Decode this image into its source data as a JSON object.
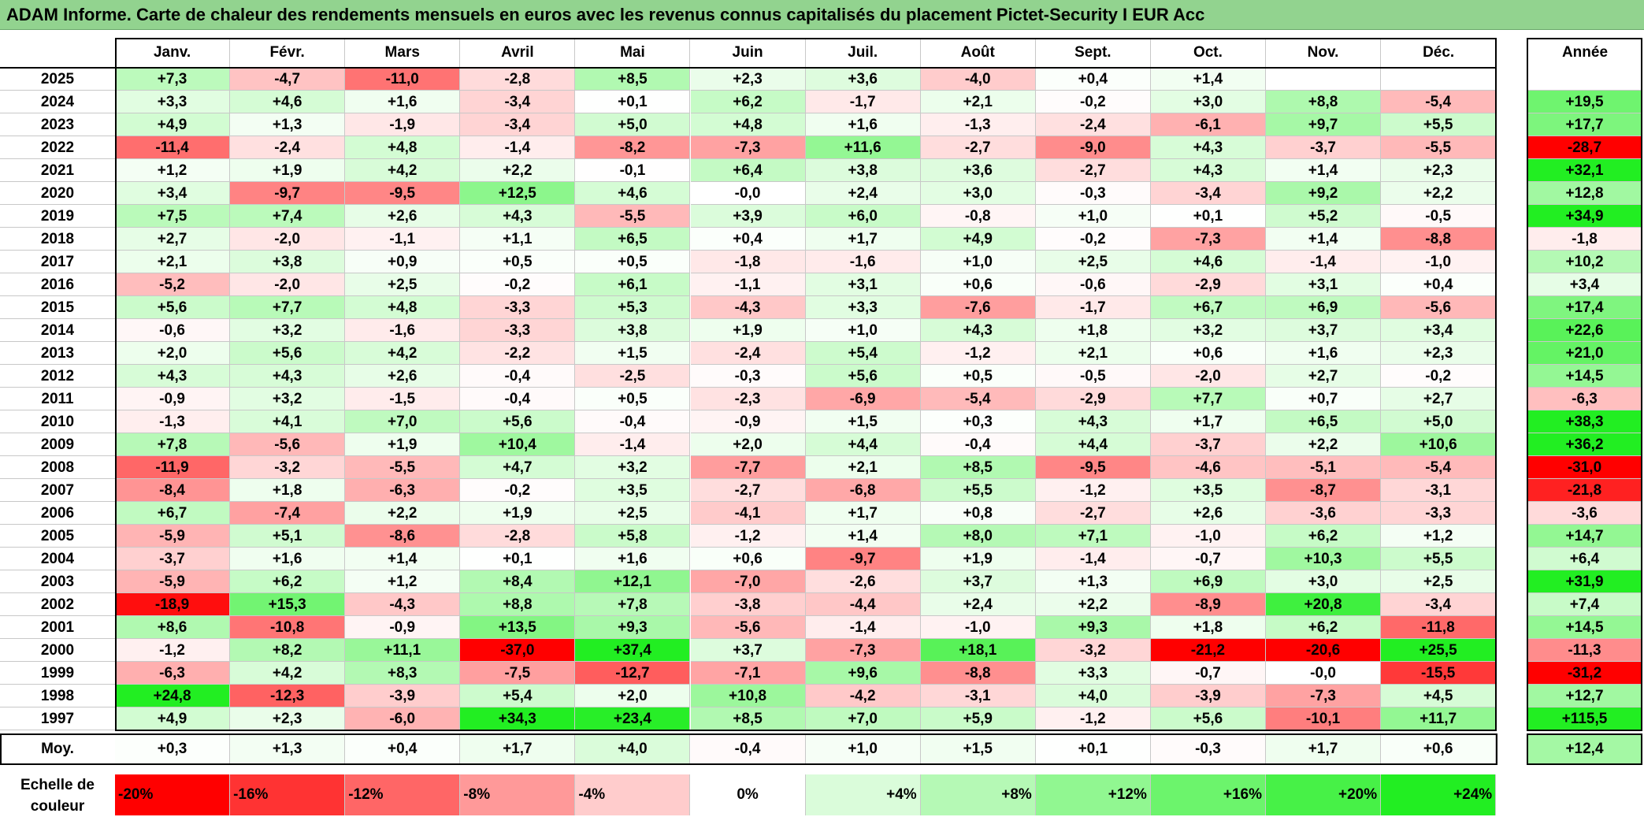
{
  "chart_data": {
    "type": "heatmap",
    "title": "ADAM Informe. Carte de chaleur des rendements mensuels en euros avec les revenus connus capitalisés du placement Pictet-Security I EUR Acc",
    "months": [
      "Janv.",
      "Févr.",
      "Mars",
      "Avril",
      "Mai",
      "Juin",
      "Juil.",
      "Août",
      "Sept.",
      "Oct.",
      "Nov.",
      "Déc."
    ],
    "annual_header": "Année",
    "rows": [
      {
        "year": "2025",
        "values": [
          "+7,3",
          "-4,7",
          "-11,0",
          "-2,8",
          "+8,5",
          "+2,3",
          "+3,6",
          "-4,0",
          "+0,4",
          "+1,4",
          "",
          ""
        ],
        "annual": ""
      },
      {
        "year": "2024",
        "values": [
          "+3,3",
          "+4,6",
          "+1,6",
          "-3,4",
          "+0,1",
          "+6,2",
          "-1,7",
          "+2,1",
          "-0,2",
          "+3,0",
          "+8,8",
          "-5,4"
        ],
        "annual": "+19,5"
      },
      {
        "year": "2023",
        "values": [
          "+4,9",
          "+1,3",
          "-1,9",
          "-3,4",
          "+5,0",
          "+4,8",
          "+1,6",
          "-1,3",
          "-2,4",
          "-6,1",
          "+9,7",
          "+5,5"
        ],
        "annual": "+17,7"
      },
      {
        "year": "2022",
        "values": [
          "-11,4",
          "-2,4",
          "+4,8",
          "-1,4",
          "-8,2",
          "-7,3",
          "+11,6",
          "-2,7",
          "-9,0",
          "+4,3",
          "-3,7",
          "-5,5"
        ],
        "annual": "-28,7"
      },
      {
        "year": "2021",
        "values": [
          "+1,2",
          "+1,9",
          "+4,2",
          "+2,2",
          "-0,1",
          "+6,4",
          "+3,8",
          "+3,6",
          "-2,7",
          "+4,3",
          "+1,4",
          "+2,3"
        ],
        "annual": "+32,1"
      },
      {
        "year": "2020",
        "values": [
          "+3,4",
          "-9,7",
          "-9,5",
          "+12,5",
          "+4,6",
          "-0,0",
          "+2,4",
          "+3,0",
          "-0,3",
          "-3,4",
          "+9,2",
          "+2,2"
        ],
        "annual": "+12,8"
      },
      {
        "year": "2019",
        "values": [
          "+7,5",
          "+7,4",
          "+2,6",
          "+4,3",
          "-5,5",
          "+3,9",
          "+6,0",
          "-0,8",
          "+1,0",
          "+0,1",
          "+5,2",
          "-0,5"
        ],
        "annual": "+34,9"
      },
      {
        "year": "2018",
        "values": [
          "+2,7",
          "-2,0",
          "-1,1",
          "+1,1",
          "+6,5",
          "+0,4",
          "+1,7",
          "+4,9",
          "-0,2",
          "-7,3",
          "+1,4",
          "-8,8"
        ],
        "annual": "-1,8"
      },
      {
        "year": "2017",
        "values": [
          "+2,1",
          "+3,8",
          "+0,9",
          "+0,5",
          "+0,5",
          "-1,8",
          "-1,6",
          "+1,0",
          "+2,5",
          "+4,6",
          "-1,4",
          "-1,0"
        ],
        "annual": "+10,2"
      },
      {
        "year": "2016",
        "values": [
          "-5,2",
          "-2,0",
          "+2,5",
          "-0,2",
          "+6,1",
          "-1,1",
          "+3,1",
          "+0,6",
          "-0,6",
          "-2,9",
          "+3,1",
          "+0,4"
        ],
        "annual": "+3,4"
      },
      {
        "year": "2015",
        "values": [
          "+5,6",
          "+7,7",
          "+4,8",
          "-3,3",
          "+5,3",
          "-4,3",
          "+3,3",
          "-7,6",
          "-1,7",
          "+6,7",
          "+6,9",
          "-5,6"
        ],
        "annual": "+17,4"
      },
      {
        "year": "2014",
        "values": [
          "-0,6",
          "+3,2",
          "-1,6",
          "-3,3",
          "+3,8",
          "+1,9",
          "+1,0",
          "+4,3",
          "+1,8",
          "+3,2",
          "+3,7",
          "+3,4"
        ],
        "annual": "+22,6"
      },
      {
        "year": "2013",
        "values": [
          "+2,0",
          "+5,6",
          "+4,2",
          "-2,2",
          "+1,5",
          "-2,4",
          "+5,4",
          "-1,2",
          "+2,1",
          "+0,6",
          "+1,6",
          "+2,3"
        ],
        "annual": "+21,0"
      },
      {
        "year": "2012",
        "values": [
          "+4,3",
          "+4,3",
          "+2,6",
          "-0,4",
          "-2,5",
          "-0,3",
          "+5,6",
          "+0,5",
          "-0,5",
          "-2,0",
          "+2,7",
          "-0,2"
        ],
        "annual": "+14,5"
      },
      {
        "year": "2011",
        "values": [
          "-0,9",
          "+3,2",
          "-1,5",
          "-0,4",
          "+0,5",
          "-2,3",
          "-6,9",
          "-5,4",
          "-2,9",
          "+7,7",
          "+0,7",
          "+2,7"
        ],
        "annual": "-6,3"
      },
      {
        "year": "2010",
        "values": [
          "-1,3",
          "+4,1",
          "+7,0",
          "+5,6",
          "-0,4",
          "-0,9",
          "+1,5",
          "+0,3",
          "+4,3",
          "+1,7",
          "+6,5",
          "+5,0"
        ],
        "annual": "+38,3"
      },
      {
        "year": "2009",
        "values": [
          "+7,8",
          "-5,6",
          "+1,9",
          "+10,4",
          "-1,4",
          "+2,0",
          "+4,4",
          "-0,4",
          "+4,4",
          "-3,7",
          "+2,2",
          "+10,6"
        ],
        "annual": "+36,2"
      },
      {
        "year": "2008",
        "values": [
          "-11,9",
          "-3,2",
          "-5,5",
          "+4,7",
          "+3,2",
          "-7,7",
          "+2,1",
          "+8,5",
          "-9,5",
          "-4,6",
          "-5,1",
          "-5,4"
        ],
        "annual": "-31,0"
      },
      {
        "year": "2007",
        "values": [
          "-8,4",
          "+1,8",
          "-6,3",
          "-0,2",
          "+3,5",
          "-2,7",
          "-6,8",
          "+5,5",
          "-1,2",
          "+3,5",
          "-8,7",
          "-3,1"
        ],
        "annual": "-21,8"
      },
      {
        "year": "2006",
        "values": [
          "+6,7",
          "-7,4",
          "+2,2",
          "+1,9",
          "+2,5",
          "-4,1",
          "+1,7",
          "+0,8",
          "-2,7",
          "+2,6",
          "-3,6",
          "-3,3"
        ],
        "annual": "-3,6"
      },
      {
        "year": "2005",
        "values": [
          "-5,9",
          "+5,1",
          "-8,6",
          "-2,8",
          "+5,8",
          "-1,2",
          "+1,4",
          "+8,0",
          "+7,1",
          "-1,0",
          "+6,2",
          "+1,2"
        ],
        "annual": "+14,7"
      },
      {
        "year": "2004",
        "values": [
          "-3,7",
          "+1,6",
          "+1,4",
          "+0,1",
          "+1,6",
          "+0,6",
          "-9,7",
          "+1,9",
          "-1,4",
          "-0,7",
          "+10,3",
          "+5,5"
        ],
        "annual": "+6,4"
      },
      {
        "year": "2003",
        "values": [
          "-5,9",
          "+6,2",
          "+1,2",
          "+8,4",
          "+12,1",
          "-7,0",
          "-2,6",
          "+3,7",
          "+1,3",
          "+6,9",
          "+3,0",
          "+2,5"
        ],
        "annual": "+31,9"
      },
      {
        "year": "2002",
        "values": [
          "-18,9",
          "+15,3",
          "-4,3",
          "+8,8",
          "+7,8",
          "-3,8",
          "-4,4",
          "+2,4",
          "+2,2",
          "-8,9",
          "+20,8",
          "-3,4"
        ],
        "annual": "+7,4"
      },
      {
        "year": "2001",
        "values": [
          "+8,6",
          "-10,8",
          "-0,9",
          "+13,5",
          "+9,3",
          "-5,6",
          "-1,4",
          "-1,0",
          "+9,3",
          "+1,8",
          "+6,2",
          "-11,8"
        ],
        "annual": "+14,5"
      },
      {
        "year": "2000",
        "values": [
          "-1,2",
          "+8,2",
          "+11,1",
          "-37,0",
          "+37,4",
          "+3,7",
          "-7,3",
          "+18,1",
          "-3,2",
          "-21,2",
          "-20,6",
          "+25,5"
        ],
        "annual": "-11,3"
      },
      {
        "year": "1999",
        "values": [
          "-6,3",
          "+4,2",
          "+8,3",
          "-7,5",
          "-12,7",
          "-7,1",
          "+9,6",
          "-8,8",
          "+3,3",
          "-0,7",
          "-0,0",
          "-15,5"
        ],
        "annual": "-31,2"
      },
      {
        "year": "1998",
        "values": [
          "+24,8",
          "-12,3",
          "-3,9",
          "+5,4",
          "+2,0",
          "+10,8",
          "-4,2",
          "-3,1",
          "+4,0",
          "-3,9",
          "-7,3",
          "+4,5"
        ],
        "annual": "+12,7"
      },
      {
        "year": "1997",
        "values": [
          "+4,9",
          "+2,3",
          "-6,0",
          "+34,3",
          "+23,4",
          "+8,5",
          "+7,0",
          "+5,9",
          "-1,2",
          "+5,6",
          "-10,1",
          "+11,7"
        ],
        "annual": "+115,5"
      }
    ],
    "average": {
      "label": "Moy.",
      "values": [
        "+0,3",
        "+1,3",
        "+0,4",
        "+1,7",
        "+4,0",
        "-0,4",
        "+1,0",
        "+1,5",
        "+0,1",
        "-0,3",
        "+1,7",
        "+0,6"
      ],
      "annual": "+12,4"
    },
    "scale": {
      "label": "Echelle de couleur",
      "stops": [
        "-20%",
        "-16%",
        "-12%",
        "-8%",
        "-4%",
        "0%",
        "+4%",
        "+8%",
        "+12%",
        "+16%",
        "+20%",
        "+24%"
      ],
      "stop_values": [
        -20,
        -16,
        -12,
        -8,
        -4,
        0,
        4,
        8,
        12,
        16,
        20,
        24
      ]
    },
    "colors": {
      "max_red": "#ff0000",
      "max_green": "#22ee22",
      "neutral": "#ffffff",
      "title_bg": "#92d38f"
    }
  }
}
